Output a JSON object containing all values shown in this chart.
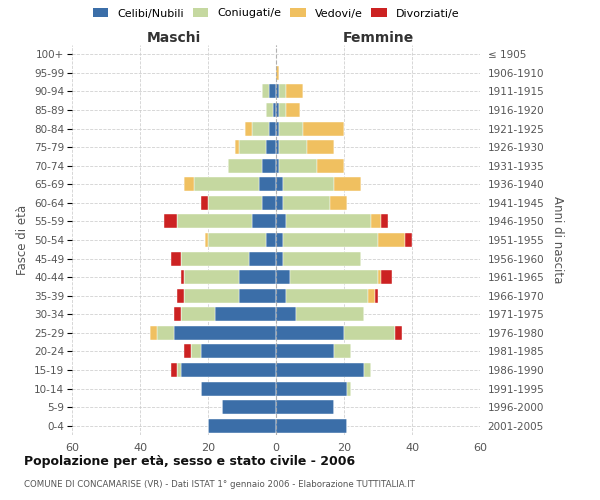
{
  "age_groups": [
    "0-4",
    "5-9",
    "10-14",
    "15-19",
    "20-24",
    "25-29",
    "30-34",
    "35-39",
    "40-44",
    "45-49",
    "50-54",
    "55-59",
    "60-64",
    "65-69",
    "70-74",
    "75-79",
    "80-84",
    "85-89",
    "90-94",
    "95-99",
    "100+"
  ],
  "birth_years": [
    "2001-2005",
    "1996-2000",
    "1991-1995",
    "1986-1990",
    "1981-1985",
    "1976-1980",
    "1971-1975",
    "1966-1970",
    "1961-1965",
    "1956-1960",
    "1951-1955",
    "1946-1950",
    "1941-1945",
    "1936-1940",
    "1931-1935",
    "1926-1930",
    "1921-1925",
    "1916-1920",
    "1911-1915",
    "1906-1910",
    "≤ 1905"
  ],
  "maschi": {
    "celibi": [
      20,
      16,
      22,
      28,
      22,
      30,
      18,
      11,
      11,
      8,
      3,
      7,
      4,
      5,
      4,
      3,
      2,
      1,
      2,
      0,
      0
    ],
    "coniugati": [
      0,
      0,
      0,
      1,
      3,
      5,
      10,
      16,
      16,
      20,
      17,
      22,
      16,
      19,
      10,
      8,
      5,
      2,
      2,
      0,
      0
    ],
    "vedovi": [
      0,
      0,
      0,
      0,
      0,
      2,
      0,
      0,
      0,
      0,
      1,
      0,
      0,
      3,
      0,
      1,
      2,
      0,
      0,
      0,
      0
    ],
    "divorziati": [
      0,
      0,
      0,
      2,
      2,
      0,
      2,
      2,
      1,
      3,
      0,
      4,
      2,
      0,
      0,
      0,
      0,
      0,
      0,
      0,
      0
    ]
  },
  "femmine": {
    "nubili": [
      21,
      17,
      21,
      26,
      17,
      20,
      6,
      3,
      4,
      2,
      2,
      3,
      2,
      2,
      1,
      1,
      1,
      1,
      1,
      0,
      0
    ],
    "coniugate": [
      0,
      0,
      1,
      2,
      5,
      15,
      20,
      24,
      26,
      23,
      28,
      25,
      14,
      15,
      11,
      8,
      7,
      2,
      2,
      0,
      0
    ],
    "vedove": [
      0,
      0,
      0,
      0,
      0,
      0,
      0,
      2,
      1,
      0,
      8,
      3,
      5,
      8,
      8,
      8,
      12,
      4,
      5,
      1,
      0
    ],
    "divorziate": [
      0,
      0,
      0,
      0,
      0,
      2,
      0,
      1,
      3,
      0,
      2,
      2,
      0,
      0,
      0,
      0,
      0,
      0,
      0,
      0,
      0
    ]
  },
  "colors": {
    "celibi": "#3b6ea8",
    "coniugati": "#c5d8a0",
    "vedovi": "#f0c060",
    "divorziati": "#cc2222"
  },
  "xlim": 60,
  "title": "Popolazione per età, sesso e stato civile - 2006",
  "subtitle": "COMUNE DI CONCAMARISE (VR) - Dati ISTAT 1° gennaio 2006 - Elaborazione TUTTITALIA.IT",
  "ylabel_left": "Fasce di età",
  "ylabel_right": "Anni di nascita",
  "xlabel_left": "Maschi",
  "xlabel_right": "Femmine",
  "background_color": "#ffffff",
  "grid_color": "#cccccc"
}
